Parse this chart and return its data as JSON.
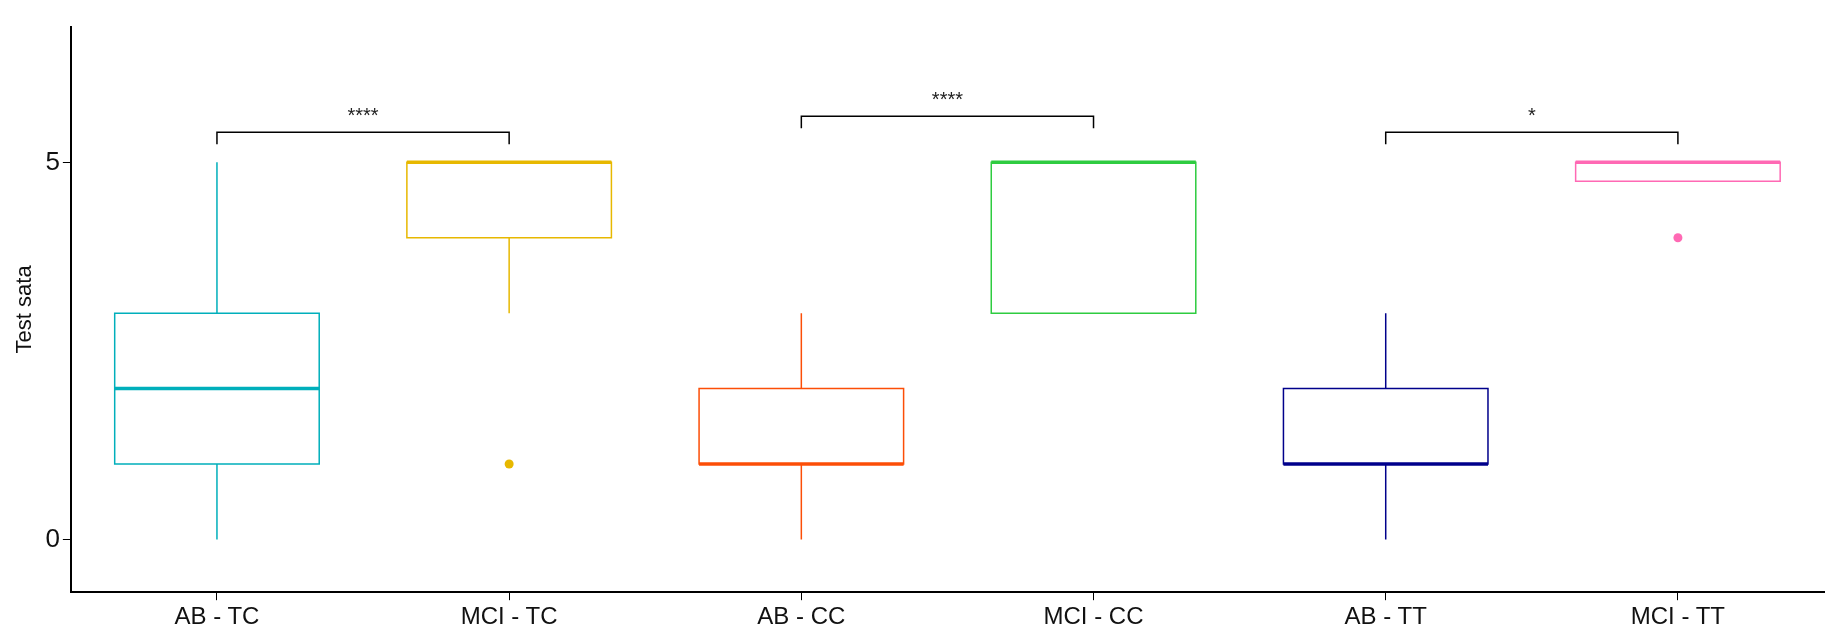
{
  "chart_data": {
    "type": "box",
    "ylabel": "Test sata",
    "categories": [
      "AB - TC",
      "MCI - TC",
      "AB - CC",
      "MCI - CC",
      "AB - TT",
      "MCI - TT"
    ],
    "colors": [
      "#00afbb",
      "#e7b800",
      "#fc4e07",
      "#2ecc40",
      "#00008b",
      "#ff69b4"
    ],
    "boxes": [
      {
        "low": 0,
        "q1": 1,
        "median": 2,
        "q3": 3,
        "high": 5
      },
      {
        "low": 3,
        "q1": 4,
        "median": 5,
        "q3": 5,
        "high": 5,
        "outliers": [
          1
        ]
      },
      {
        "low": 0,
        "q1": 1,
        "median": 1,
        "q3": 2,
        "high": 3
      },
      {
        "low": 3,
        "q1": 3,
        "median": 5,
        "q3": 5,
        "high": 5
      },
      {
        "low": 0,
        "q1": 1,
        "median": 1,
        "q3": 2,
        "high": 3
      },
      {
        "low": 4.75,
        "q1": 4.75,
        "median": 5,
        "q3": 5,
        "high": 5,
        "outliers": [
          4
        ]
      }
    ],
    "annotations": [
      "****",
      "****",
      "*"
    ],
    "ylim": [
      -0.7,
      6.8
    ],
    "yticks": [
      0,
      5
    ]
  }
}
